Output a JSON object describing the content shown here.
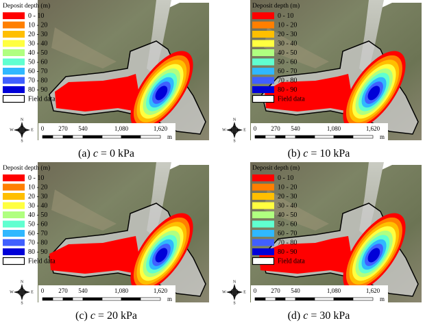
{
  "legend": {
    "title": "Deposit depth (m)",
    "items": [
      {
        "label": "0 - 10",
        "color": "#ff0000"
      },
      {
        "label": "10 - 20",
        "color": "#ff7f00"
      },
      {
        "label": "20 - 30",
        "color": "#ffbf00"
      },
      {
        "label": "30 - 40",
        "color": "#ffff40"
      },
      {
        "label": "40 - 50",
        "color": "#b0ff80"
      },
      {
        "label": "50 - 60",
        "color": "#60ffd0"
      },
      {
        "label": "60 - 70",
        "color": "#30b8ff"
      },
      {
        "label": "70 - 80",
        "color": "#4060ff"
      },
      {
        "label": "80 - 90",
        "color": "#0000d8"
      }
    ],
    "field_data": "Field data"
  },
  "compass": {
    "north": "N",
    "south": "S",
    "east": "E",
    "west": "W"
  },
  "scale_bar": {
    "labels": [
      "0",
      "270",
      "540",
      "1,080",
      "1,620"
    ],
    "unit": "m"
  },
  "panels": [
    {
      "caption": [
        "(a)",
        "c",
        "= 0 kPa"
      ]
    },
    {
      "caption": [
        "(b)",
        "c",
        "= 10 kPa"
      ]
    },
    {
      "caption": [
        "(c)",
        "c",
        "= 20 kPa"
      ]
    },
    {
      "caption": [
        "(d)",
        "c",
        "= 30 kPa"
      ]
    }
  ]
}
